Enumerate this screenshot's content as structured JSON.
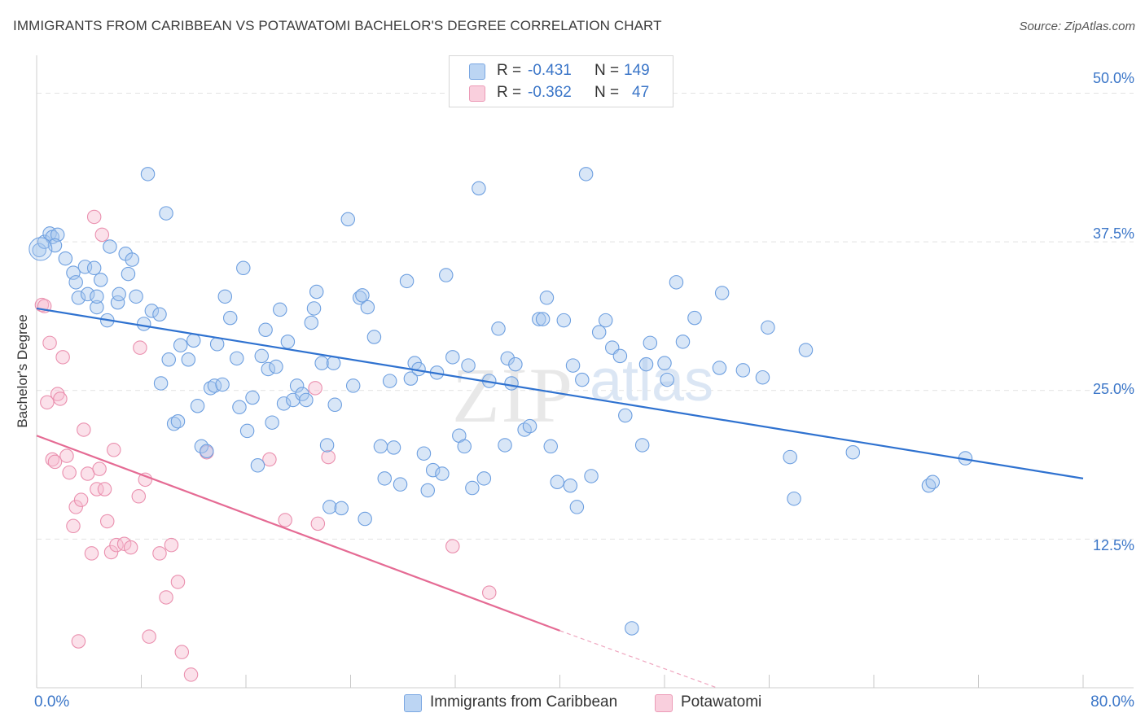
{
  "header": {
    "title": "IMMIGRANTS FROM CARIBBEAN VS POTAWATOMI BACHELOR'S DEGREE CORRELATION CHART",
    "source": "Source: ZipAtlas.com"
  },
  "watermark": {
    "zip": "ZIP",
    "atlas": "atlas"
  },
  "legend": {
    "rows": [
      {
        "r_label": "R =",
        "r_value": "-0.431",
        "n_label": "N =",
        "n_value": "149"
      },
      {
        "r_label": "R =",
        "r_value": "-0.362",
        "n_label": "N =",
        "n_value": "47"
      }
    ]
  },
  "colors": {
    "blue_fill": "#a9c8ee",
    "blue_stroke": "#6d9fe0",
    "blue_line": "#2f72d0",
    "pink_fill": "#f6bcd0",
    "pink_stroke": "#ea8fae",
    "pink_line": "#e56b94",
    "axis_text": "#3b76c8"
  },
  "chart_data": {
    "type": "scatter",
    "title": "IMMIGRANTS FROM CARIBBEAN VS POTAWATOMI BACHELOR'S DEGREE CORRELATION CHART",
    "xlabel": "",
    "ylabel": "Bachelor's Degree",
    "xlim": [
      0,
      80
    ],
    "ylim": [
      0,
      52.5
    ],
    "x_tick_labels": [
      "0.0%",
      "80.0%"
    ],
    "y_ticks": [
      12.5,
      25.0,
      37.5,
      50.0
    ],
    "y_tick_labels": [
      "12.5%",
      "25.0%",
      "37.5%",
      "50.0%"
    ],
    "grid": true,
    "legend_position": "top-center",
    "series": [
      {
        "name": "Immigrants from Caribbean",
        "color": "#a9c8ee",
        "r": -0.431,
        "n": 149,
        "trend": {
          "x": [
            0,
            80
          ],
          "y": [
            31.9,
            17.6
          ]
        },
        "points": [
          [
            0.2,
            36.8
          ],
          [
            0.6,
            37.5
          ],
          [
            1.0,
            38.2
          ],
          [
            1.2,
            37.9
          ],
          [
            1.6,
            38.1
          ],
          [
            1.4,
            37.2
          ],
          [
            2.2,
            36.1
          ],
          [
            2.8,
            34.9
          ],
          [
            3.0,
            34.1
          ],
          [
            3.2,
            32.8
          ],
          [
            3.7,
            35.4
          ],
          [
            3.9,
            33.1
          ],
          [
            4.4,
            35.3
          ],
          [
            4.6,
            32.0
          ],
          [
            4.6,
            32.9
          ],
          [
            4.9,
            34.3
          ],
          [
            5.4,
            30.9
          ],
          [
            5.6,
            37.1
          ],
          [
            6.2,
            32.4
          ],
          [
            6.3,
            33.1
          ],
          [
            6.8,
            36.5
          ],
          [
            7.0,
            34.8
          ],
          [
            7.3,
            36.0
          ],
          [
            7.6,
            32.9
          ],
          [
            8.2,
            30.6
          ],
          [
            8.5,
            43.2
          ],
          [
            8.8,
            31.7
          ],
          [
            9.4,
            31.4
          ],
          [
            9.5,
            25.6
          ],
          [
            9.9,
            39.9
          ],
          [
            10.1,
            27.6
          ],
          [
            10.5,
            22.2
          ],
          [
            10.8,
            22.4
          ],
          [
            11.0,
            28.8
          ],
          [
            11.6,
            27.6
          ],
          [
            12.0,
            29.2
          ],
          [
            12.3,
            23.7
          ],
          [
            12.6,
            20.3
          ],
          [
            13.0,
            19.9
          ],
          [
            13.3,
            25.2
          ],
          [
            13.6,
            25.4
          ],
          [
            13.8,
            28.9
          ],
          [
            14.2,
            25.5
          ],
          [
            14.4,
            32.9
          ],
          [
            14.8,
            31.1
          ],
          [
            15.3,
            27.7
          ],
          [
            15.5,
            23.6
          ],
          [
            15.8,
            35.3
          ],
          [
            16.1,
            21.6
          ],
          [
            16.5,
            24.4
          ],
          [
            16.9,
            18.7
          ],
          [
            17.2,
            27.9
          ],
          [
            17.5,
            30.1
          ],
          [
            17.7,
            26.8
          ],
          [
            18.0,
            22.3
          ],
          [
            18.3,
            27.0
          ],
          [
            18.6,
            31.8
          ],
          [
            18.9,
            23.9
          ],
          [
            19.2,
            29.1
          ],
          [
            19.6,
            24.2
          ],
          [
            19.9,
            25.4
          ],
          [
            20.3,
            24.7
          ],
          [
            20.6,
            24.2
          ],
          [
            21.0,
            30.7
          ],
          [
            21.2,
            31.9
          ],
          [
            21.4,
            33.3
          ],
          [
            21.8,
            27.3
          ],
          [
            22.2,
            20.4
          ],
          [
            22.4,
            15.2
          ],
          [
            22.8,
            23.8
          ],
          [
            22.7,
            27.3
          ],
          [
            23.3,
            15.1
          ],
          [
            23.8,
            39.4
          ],
          [
            24.2,
            25.4
          ],
          [
            24.7,
            32.8
          ],
          [
            24.9,
            33.0
          ],
          [
            25.1,
            14.2
          ],
          [
            25.8,
            29.5
          ],
          [
            25.3,
            32.0
          ],
          [
            26.3,
            20.3
          ],
          [
            26.6,
            17.6
          ],
          [
            27.0,
            25.8
          ],
          [
            27.3,
            20.2
          ],
          [
            27.8,
            17.1
          ],
          [
            28.3,
            34.2
          ],
          [
            28.6,
            26.0
          ],
          [
            28.9,
            27.3
          ],
          [
            29.2,
            26.8
          ],
          [
            29.6,
            19.7
          ],
          [
            29.9,
            16.6
          ],
          [
            30.3,
            18.3
          ],
          [
            30.6,
            26.5
          ],
          [
            31.0,
            18.0
          ],
          [
            31.3,
            34.7
          ],
          [
            31.8,
            27.8
          ],
          [
            32.3,
            21.2
          ],
          [
            32.7,
            20.3
          ],
          [
            33.0,
            27.1
          ],
          [
            33.3,
            16.8
          ],
          [
            33.8,
            42.0
          ],
          [
            34.2,
            17.6
          ],
          [
            34.6,
            25.8
          ],
          [
            35.3,
            30.2
          ],
          [
            35.8,
            20.4
          ],
          [
            36.0,
            27.7
          ],
          [
            36.3,
            25.6
          ],
          [
            36.6,
            27.2
          ],
          [
            37.3,
            21.7
          ],
          [
            37.7,
            22.0
          ],
          [
            38.4,
            31.0
          ],
          [
            38.7,
            31.0
          ],
          [
            39.0,
            32.8
          ],
          [
            39.3,
            20.3
          ],
          [
            39.8,
            17.3
          ],
          [
            40.3,
            30.9
          ],
          [
            40.8,
            17.0
          ],
          [
            41.0,
            27.1
          ],
          [
            41.3,
            15.2
          ],
          [
            41.7,
            25.9
          ],
          [
            42.0,
            43.2
          ],
          [
            42.4,
            17.8
          ],
          [
            43.0,
            29.9
          ],
          [
            43.5,
            30.9
          ],
          [
            44.0,
            28.6
          ],
          [
            44.6,
            27.9
          ],
          [
            45.0,
            22.9
          ],
          [
            45.5,
            5.0
          ],
          [
            46.3,
            20.4
          ],
          [
            46.6,
            27.2
          ],
          [
            46.9,
            29.0
          ],
          [
            48.0,
            27.3
          ],
          [
            48.2,
            25.9
          ],
          [
            48.9,
            34.1
          ],
          [
            49.4,
            29.1
          ],
          [
            50.3,
            31.1
          ],
          [
            52.2,
            26.9
          ],
          [
            52.4,
            33.2
          ],
          [
            54.0,
            26.7
          ],
          [
            55.5,
            26.1
          ],
          [
            55.9,
            30.3
          ],
          [
            57.6,
            19.4
          ],
          [
            57.9,
            15.9
          ],
          [
            58.8,
            28.4
          ],
          [
            62.4,
            19.8
          ],
          [
            68.2,
            17.0
          ],
          [
            68.5,
            17.3
          ],
          [
            71.0,
            19.3
          ]
        ]
      },
      {
        "name": "Potawatomi",
        "color": "#f6bcd0",
        "r": -0.362,
        "n": 47,
        "trend": {
          "x": [
            0,
            40.0
          ],
          "y": [
            21.2,
            4.8
          ]
        },
        "trend_dashed": {
          "x": [
            40.0,
            52.0
          ],
          "y": [
            4.8,
            0
          ]
        },
        "points": [
          [
            0.4,
            32.2
          ],
          [
            0.6,
            32.1
          ],
          [
            0.8,
            24.0
          ],
          [
            1.0,
            29.0
          ],
          [
            1.2,
            19.2
          ],
          [
            1.4,
            19.0
          ],
          [
            1.6,
            24.7
          ],
          [
            1.8,
            24.3
          ],
          [
            2.0,
            27.8
          ],
          [
            2.3,
            19.5
          ],
          [
            2.5,
            18.1
          ],
          [
            2.8,
            13.6
          ],
          [
            3.0,
            15.2
          ],
          [
            3.2,
            3.9
          ],
          [
            3.4,
            15.8
          ],
          [
            3.6,
            21.7
          ],
          [
            3.9,
            18.0
          ],
          [
            4.2,
            11.3
          ],
          [
            4.4,
            39.6
          ],
          [
            4.6,
            16.7
          ],
          [
            4.8,
            18.4
          ],
          [
            5.0,
            38.1
          ],
          [
            5.2,
            16.7
          ],
          [
            5.4,
            14.0
          ],
          [
            5.7,
            11.4
          ],
          [
            5.9,
            20.0
          ],
          [
            6.1,
            12.0
          ],
          [
            6.7,
            12.1
          ],
          [
            7.2,
            11.8
          ],
          [
            7.8,
            16.1
          ],
          [
            7.9,
            28.6
          ],
          [
            8.3,
            17.5
          ],
          [
            8.6,
            4.3
          ],
          [
            9.4,
            11.3
          ],
          [
            9.9,
            7.6
          ],
          [
            10.3,
            12.0
          ],
          [
            10.8,
            8.9
          ],
          [
            11.1,
            3.0
          ],
          [
            11.8,
            1.1
          ],
          [
            13.0,
            19.8
          ],
          [
            17.8,
            19.2
          ],
          [
            19.0,
            14.1
          ],
          [
            21.3,
            25.2
          ],
          [
            21.5,
            13.8
          ],
          [
            22.3,
            19.4
          ],
          [
            31.8,
            11.9
          ],
          [
            34.6,
            8.0
          ]
        ]
      }
    ]
  },
  "bottom_legend": {
    "series1": "Immigrants from Caribbean",
    "series2": "Potawatomi"
  }
}
